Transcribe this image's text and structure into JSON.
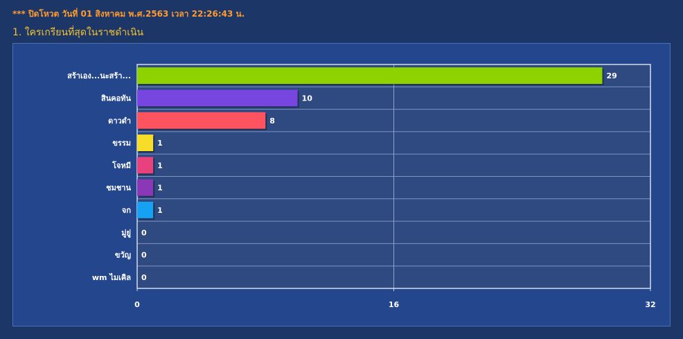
{
  "header": {
    "notice": "*** ปิดโหวต วันที่ 01 สิงหาคม พ.ศ.2563 เวลา 22:26:43 น.",
    "question": "1. ใครเกรียนที่สุดในราชดำเนิน"
  },
  "chart_data": {
    "type": "bar",
    "orientation": "horizontal",
    "categories": [
      "สร้าเอง...นะสร้า...",
      "สินคอทัน",
      "ดาวดำ",
      "ขรรม",
      "โจหมี",
      "ชมชาน",
      "จก",
      "มู่ยู่",
      "ขวัญ",
      "wm ไมเคิล"
    ],
    "values": [
      29,
      10,
      8,
      1,
      1,
      1,
      1,
      0,
      0,
      0
    ],
    "colors": [
      "#8ed300",
      "#7745e0",
      "#ff5460",
      "#f5dd2a",
      "#e8417e",
      "#8b38b6",
      "#16a2f2",
      "#8ed300",
      "#7745e0",
      "#ff5460"
    ],
    "xlim": [
      0,
      32
    ],
    "xticks": [
      "0",
      "16",
      "32"
    ],
    "grid": true,
    "plot_background": "#2f4a80",
    "title": "",
    "xlabel": "",
    "ylabel": ""
  }
}
